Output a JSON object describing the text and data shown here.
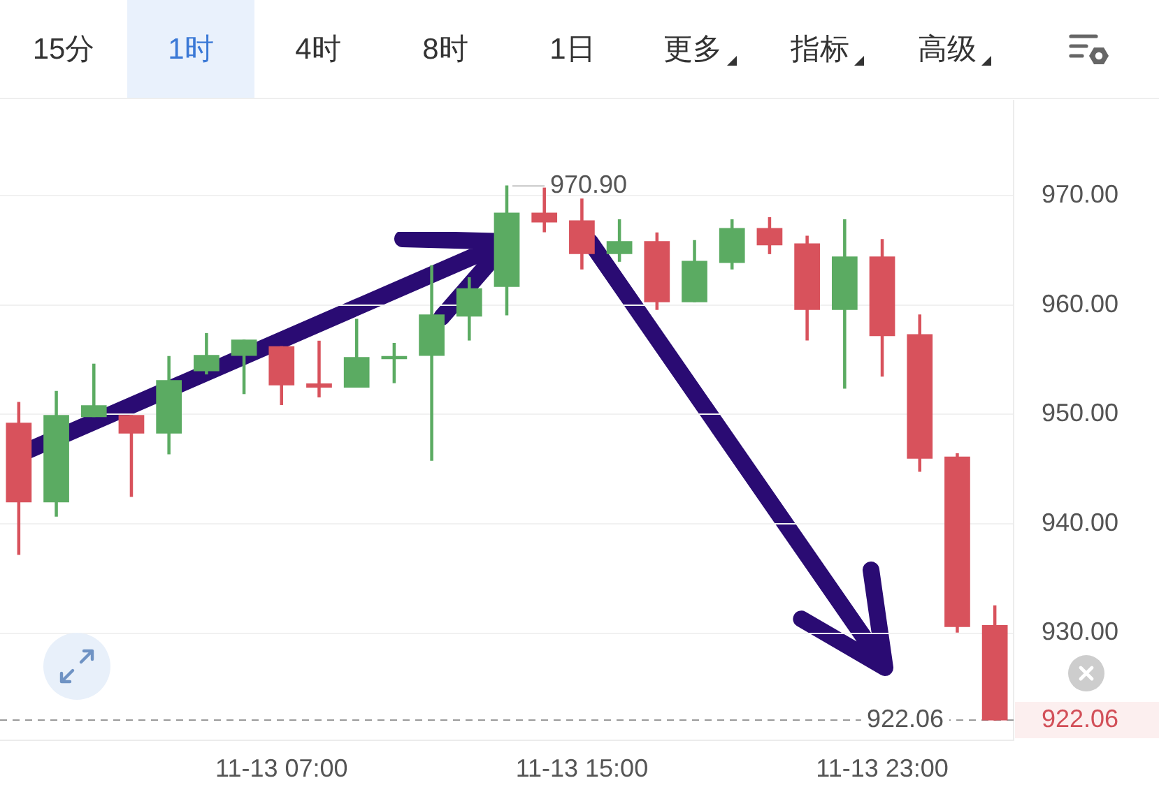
{
  "chart_data": {
    "type": "candlestick",
    "categories": [
      null,
      null,
      null,
      null,
      null,
      null,
      null,
      "11-13 07:00",
      null,
      null,
      null,
      null,
      null,
      null,
      null,
      "11-13 15:00",
      null,
      null,
      null,
      null,
      null,
      null,
      null,
      "11-13 23:00",
      null,
      null,
      null
    ],
    "ohlc": [
      [
        949.2,
        951.1,
        937.2,
        942.0
      ],
      [
        942.0,
        952.1,
        940.7,
        949.9
      ],
      [
        949.8,
        954.6,
        949.8,
        950.8
      ],
      [
        949.9,
        949.9,
        942.5,
        948.3
      ],
      [
        948.3,
        955.3,
        946.4,
        953.1
      ],
      [
        954.0,
        957.4,
        953.7,
        955.4
      ],
      [
        955.4,
        956.8,
        951.9,
        956.8
      ],
      [
        956.2,
        956.2,
        950.9,
        952.7
      ],
      [
        952.8,
        956.7,
        951.6,
        952.5
      ],
      [
        952.5,
        958.7,
        952.5,
        955.2
      ],
      [
        955.1,
        956.5,
        952.9,
        955.3
      ],
      [
        955.4,
        963.6,
        945.8,
        959.1
      ],
      [
        959.0,
        962.5,
        956.8,
        961.5
      ],
      [
        961.7,
        970.9,
        959.1,
        968.4
      ],
      [
        968.4,
        970.7,
        966.7,
        967.6
      ],
      [
        967.7,
        969.7,
        963.3,
        964.7
      ],
      [
        964.7,
        967.8,
        964.0,
        965.8
      ],
      [
        965.8,
        966.6,
        959.6,
        960.3
      ],
      [
        960.3,
        965.9,
        960.3,
        964.0
      ],
      [
        963.9,
        967.8,
        963.3,
        967.0
      ],
      [
        967.0,
        968.0,
        964.7,
        965.5
      ],
      [
        965.6,
        966.3,
        956.8,
        959.6
      ],
      [
        959.6,
        967.8,
        952.4,
        964.4
      ],
      [
        964.4,
        966.0,
        953.5,
        957.2
      ],
      [
        957.3,
        959.1,
        944.8,
        946.0
      ],
      [
        946.1,
        946.4,
        930.1,
        930.6
      ],
      [
        930.7,
        932.5,
        922.06,
        922.06
      ]
    ],
    "colors": [
      "#d8525c",
      "#5bab62",
      "#5bab62",
      "#d8525c",
      "#5bab62",
      "#5bab62",
      "#5bab62",
      "#d8525c",
      "#d8525c",
      "#5bab62",
      "#5bab62",
      "#5bab62",
      "#5bab62",
      "#5bab62",
      "#d8525c",
      "#d8525c",
      "#5bab62",
      "#d8525c",
      "#5bab62",
      "#5bab62",
      "#d8525c",
      "#d8525c",
      "#5bab62",
      "#d8525c",
      "#d8525c",
      "#d8525c",
      "#d8525c"
    ],
    "ylim": [
      920.2,
      978.7
    ],
    "yticks": [
      {
        "value": 930,
        "label": "930.00"
      },
      {
        "value": 940,
        "label": "940.00"
      },
      {
        "value": 950,
        "label": "950.00"
      },
      {
        "value": 960,
        "label": "960.00"
      },
      {
        "value": 970,
        "label": "970.00"
      }
    ],
    "grid": "y",
    "ref_lines": [
      {
        "axis": "y",
        "value": 922.06,
        "label": "922.06",
        "color": "#9a9a9a",
        "line_style": "dashed"
      }
    ],
    "annotations": [
      "15分",
      "1时",
      "4时",
      "8时",
      "1日",
      "更多",
      "指标",
      "高级",
      "970.90"
    ]
  }
}
